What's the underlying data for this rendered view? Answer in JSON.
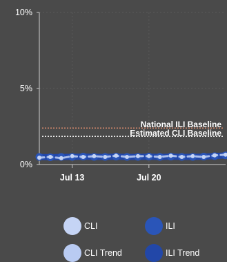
{
  "colors": {
    "background": "#4a4a4a",
    "axis": "#cfcfcf",
    "grid": "#5a5a5a",
    "cli_series": "#c5d4f5",
    "ili_series": "#2a55b8",
    "cli_trend": "#b9cbf2",
    "ili_trend": "#2247a8",
    "national_ili_baseline": "#d78a6c",
    "estimated_cli_baseline": "#e6e6e6"
  },
  "chart_data": {
    "type": "line",
    "x_ticks": [
      "Jul 13",
      "Jul 20"
    ],
    "y_ticks": [
      "0%",
      "5%",
      "10%"
    ],
    "ylim": [
      0,
      10
    ],
    "xlim": [
      "Jul 10",
      "Jul 27"
    ],
    "grid": true,
    "x": [
      "Jul 10",
      "Jul 11",
      "Jul 12",
      "Jul 13",
      "Jul 14",
      "Jul 15",
      "Jul 16",
      "Jul 17",
      "Jul 18",
      "Jul 19",
      "Jul 20",
      "Jul 21",
      "Jul 22",
      "Jul 23",
      "Jul 24",
      "Jul 25",
      "Jul 26",
      "Jul 27"
    ],
    "series": [
      {
        "name": "CLI",
        "values": [
          0.45,
          0.5,
          0.42,
          0.55,
          0.5,
          0.55,
          0.5,
          0.58,
          0.5,
          0.55,
          0.55,
          0.5,
          0.58,
          0.5,
          0.55,
          0.5,
          0.6,
          0.65
        ]
      },
      {
        "name": "ILI",
        "values": [
          0.5,
          0.48,
          0.5,
          0.5,
          0.52,
          0.5,
          0.5,
          0.52,
          0.5,
          0.5,
          0.52,
          0.5,
          0.52,
          0.5,
          0.5,
          0.52,
          0.55,
          0.6
        ]
      }
    ],
    "reference_lines": [
      {
        "name": "National ILI Baseline",
        "value": 2.4
      },
      {
        "name": "Estimated CLI Baseline",
        "value": 1.85
      }
    ],
    "legend": {
      "placement": "bottom",
      "items": [
        {
          "label": "CLI",
          "color": "#c5d4f5"
        },
        {
          "label": "ILI",
          "color": "#2a55b8"
        },
        {
          "label": "CLI Trend",
          "color": "#b9cbf2"
        },
        {
          "label": "ILI Trend",
          "color": "#2247a8"
        }
      ]
    }
  }
}
